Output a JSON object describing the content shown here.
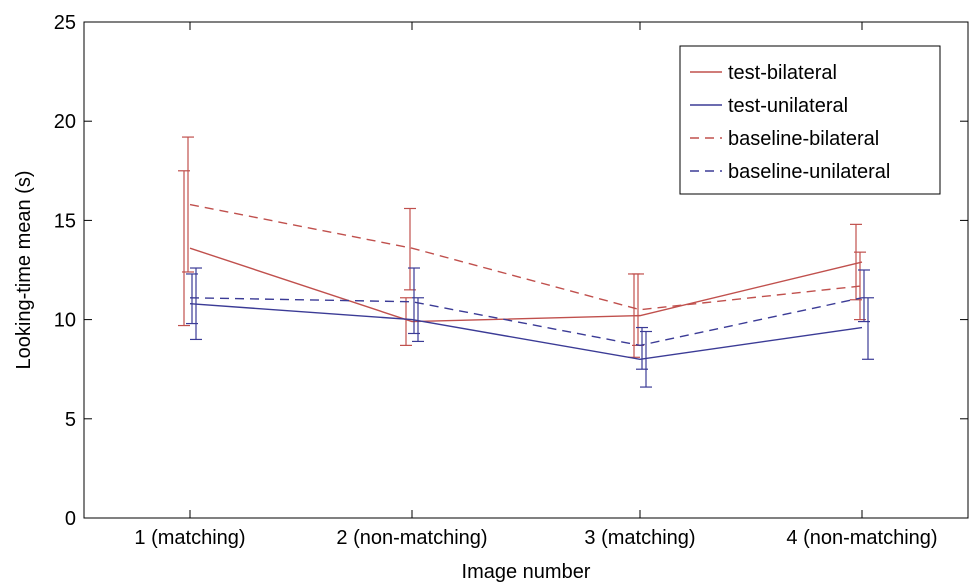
{
  "chart_data": {
    "type": "line",
    "title": "",
    "xlabel": "Image number",
    "ylabel": "Looking-time mean (s)",
    "categories": [
      "1 (matching)",
      "2 (non-matching)",
      "3 (matching)",
      "4 (non-matching)"
    ],
    "ylim": [
      0,
      25
    ],
    "yticks": [
      "0",
      "5",
      "10",
      "15",
      "20",
      "25"
    ],
    "grid": false,
    "legend_position": "top-right",
    "series": [
      {
        "name": "test-bilateral",
        "color": "#c0504d",
        "dash": "solid",
        "values": [
          13.6,
          9.9,
          10.2,
          12.9
        ],
        "err_low": [
          9.7,
          8.7,
          8.1,
          11.0
        ],
        "err_high": [
          17.5,
          11.1,
          12.3,
          14.8
        ]
      },
      {
        "name": "test-unilateral",
        "color": "#3b3b96",
        "dash": "solid",
        "values": [
          10.8,
          10.0,
          8.0,
          9.6
        ],
        "err_low": [
          9.0,
          8.9,
          6.6,
          8.0
        ],
        "err_high": [
          12.6,
          11.1,
          9.4,
          11.1
        ]
      },
      {
        "name": "baseline-bilateral",
        "color": "#c0504d",
        "dash": "dashed",
        "values": [
          15.8,
          13.6,
          10.5,
          11.7
        ],
        "err_low": [
          12.4,
          11.5,
          8.7,
          10.0
        ],
        "err_high": [
          19.2,
          15.6,
          12.3,
          13.4
        ]
      },
      {
        "name": "baseline-unilateral",
        "color": "#3b3b96",
        "dash": "dashed",
        "values": [
          11.1,
          10.9,
          8.7,
          11.1
        ],
        "err_low": [
          9.8,
          9.3,
          7.5,
          9.9
        ],
        "err_high": [
          12.3,
          12.6,
          9.6,
          12.5
        ]
      }
    ]
  }
}
